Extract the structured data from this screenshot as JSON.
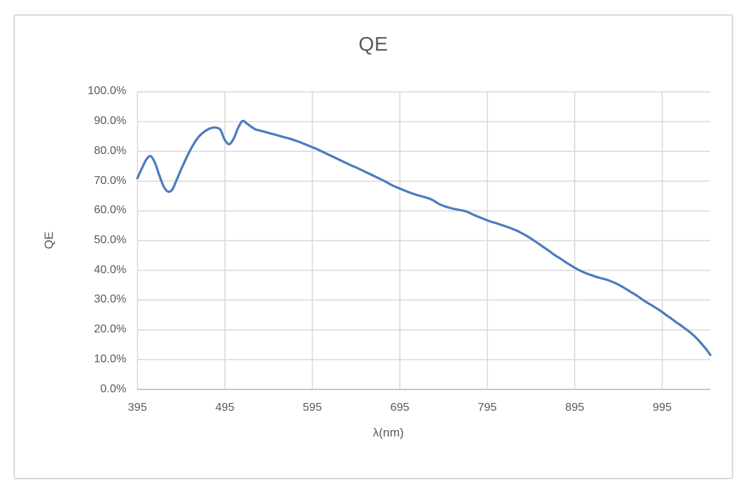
{
  "window": {
    "background_color": "#ffffff",
    "chart_border_color": "#d9d9d9"
  },
  "chart": {
    "title": "QE",
    "x_axis_title": "λ(nm)",
    "y_axis_title": "QE"
  },
  "colors": {
    "series_line": "#4d7cbe",
    "gridline": "#d9d9d9",
    "axis_line": "#bfbfbf",
    "text": "#595959"
  },
  "chart_data": {
    "type": "line",
    "title": "QE",
    "xlabel": "λ(nm)",
    "ylabel": "QE",
    "xlim": [
      395,
      1050
    ],
    "ylim": [
      0,
      100
    ],
    "grid": true,
    "legend_position": "none",
    "x_ticks": [
      395,
      495,
      595,
      695,
      795,
      895,
      995
    ],
    "x_tick_labels": [
      "395",
      "495",
      "595",
      "695",
      "795",
      "895",
      "995"
    ],
    "y_ticks": [
      0,
      10,
      20,
      30,
      40,
      50,
      60,
      70,
      80,
      90,
      100
    ],
    "y_tick_labels": [
      "0.0%",
      "10.0%",
      "20.0%",
      "30.0%",
      "40.0%",
      "50.0%",
      "60.0%",
      "70.0%",
      "80.0%",
      "90.0%",
      "100.0%"
    ],
    "series": [
      {
        "name": "QE",
        "smooth": true,
        "x": [
          395,
          400,
          405,
          410,
          415,
          420,
          425,
          430,
          435,
          440,
          445,
          450,
          455,
          460,
          465,
          470,
          475,
          480,
          485,
          490,
          495,
          500,
          505,
          510,
          515,
          520,
          525,
          530,
          535,
          540,
          545,
          550,
          555,
          560,
          565,
          570,
          575,
          580,
          585,
          590,
          595,
          600,
          605,
          610,
          615,
          620,
          625,
          630,
          635,
          640,
          645,
          650,
          655,
          660,
          665,
          670,
          675,
          680,
          685,
          690,
          695,
          700,
          705,
          710,
          715,
          720,
          725,
          730,
          735,
          740,
          745,
          750,
          755,
          760,
          765,
          770,
          775,
          780,
          785,
          790,
          795,
          800,
          805,
          810,
          815,
          820,
          825,
          830,
          835,
          840,
          845,
          850,
          855,
          860,
          865,
          870,
          875,
          880,
          885,
          890,
          895,
          900,
          905,
          910,
          915,
          920,
          925,
          930,
          935,
          940,
          945,
          950,
          955,
          960,
          965,
          970,
          975,
          980,
          985,
          990,
          995,
          1000,
          1005,
          1010,
          1015,
          1020,
          1025,
          1030,
          1035,
          1040,
          1045,
          1050
        ],
        "y_percent": [
          71.0,
          74.2,
          77.2,
          78.4,
          76.2,
          72.0,
          68.2,
          66.5,
          67.2,
          70.5,
          74.0,
          77.2,
          80.2,
          82.8,
          84.9,
          86.3,
          87.3,
          87.9,
          88.0,
          87.2,
          83.8,
          82.4,
          84.3,
          87.8,
          90.2,
          89.4,
          88.3,
          87.4,
          87.0,
          86.6,
          86.2,
          85.8,
          85.4,
          85.0,
          84.6,
          84.2,
          83.7,
          83.2,
          82.6,
          82.0,
          81.4,
          80.8,
          80.1,
          79.4,
          78.7,
          78.0,
          77.3,
          76.6,
          75.9,
          75.2,
          74.6,
          73.9,
          73.2,
          72.5,
          71.8,
          71.1,
          70.4,
          69.6,
          68.8,
          68.1,
          67.5,
          66.9,
          66.3,
          65.8,
          65.3,
          64.9,
          64.5,
          64.0,
          63.2,
          62.3,
          61.7,
          61.2,
          60.8,
          60.5,
          60.2,
          59.9,
          59.3,
          58.6,
          58.0,
          57.4,
          56.8,
          56.3,
          55.9,
          55.4,
          54.9,
          54.4,
          53.8,
          53.2,
          52.4,
          51.6,
          50.7,
          49.7,
          48.7,
          47.7,
          46.7,
          45.6,
          44.6,
          43.7,
          42.7,
          41.8,
          40.9,
          40.1,
          39.4,
          38.8,
          38.3,
          37.8,
          37.4,
          37.0,
          36.5,
          35.9,
          35.2,
          34.4,
          33.5,
          32.6,
          31.7,
          30.7,
          29.7,
          28.8,
          27.9,
          27.0,
          26.0,
          24.9,
          23.9,
          22.8,
          21.8,
          20.7,
          19.6,
          18.4,
          17.0,
          15.4,
          13.6,
          11.6
        ]
      }
    ]
  }
}
